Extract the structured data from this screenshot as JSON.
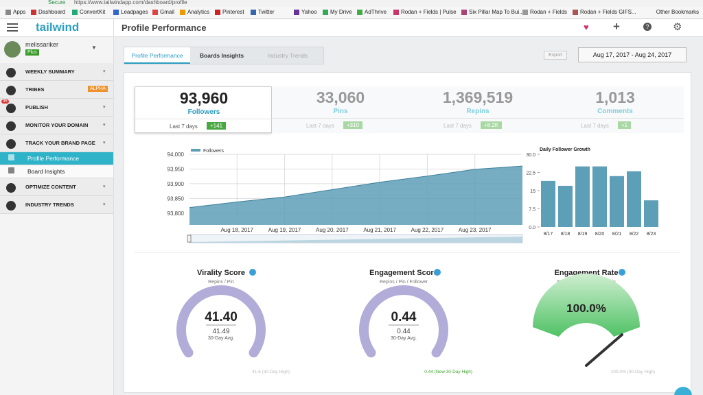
{
  "browser": {
    "security": "Secure",
    "url": "https://www.tailwindapp.com/dashboard/profile",
    "bookmarks": [
      "Apps",
      "Dashboard",
      "ConvertKit",
      "Leadpages",
      "Gmail",
      "Analytics",
      "Pinterest",
      "Twitter",
      "Yahoo",
      "My Drive",
      "AdThrive",
      "Rodan + Fields | Pulse",
      "Six Pillar Map To Bui...",
      "Rodan + Fields",
      "Rodan + Fields GIFS..."
    ],
    "other": "Other Bookmarks"
  },
  "app": {
    "logo": "tailwind",
    "page_title": "Profile Performance"
  },
  "user": {
    "name": "melissariker",
    "plan": "Plus"
  },
  "sidebar": [
    {
      "label": "WEEKLY SUMMARY"
    },
    {
      "label": "TRIBES",
      "tag": "ALPHA"
    },
    {
      "label": "PUBLISH",
      "badge": "35"
    },
    {
      "label": "MONITOR YOUR DOMAIN"
    },
    {
      "label": "TRACK YOUR BRAND PAGE"
    },
    {
      "label": "Profile Performance",
      "sub": true,
      "active": true
    },
    {
      "label": "Board Insights",
      "sub": true
    },
    {
      "label": "OPTIMIZE CONTENT"
    },
    {
      "label": "INDUSTRY TRENDS"
    }
  ],
  "tabs": [
    "Profile Performance",
    "Boards Insights",
    "Industry Trends"
  ],
  "export": "Export",
  "date_range": "Aug 17, 2017 - Aug 24, 2017",
  "stats": [
    {
      "value": "93,960",
      "label": "Followers",
      "period": "Last 7 days",
      "change": "+141"
    },
    {
      "value": "33,060",
      "label": "Pins",
      "period": "Last 7 days",
      "change": "+310"
    },
    {
      "value": "1,369,519",
      "label": "Repins",
      "period": "Last 7 days",
      "change": "+8.2K"
    },
    {
      "value": "1,013",
      "label": "Comments",
      "period": "Last 7 days",
      "change": "+1"
    }
  ],
  "chart_data": [
    {
      "type": "area",
      "legend": "Followers",
      "color": "#5e9fb8",
      "categories": [
        null,
        "Aug 18, 2017",
        "Aug 19, 2017",
        "Aug 20, 2017",
        "Aug 21, 2017",
        "Aug 22, 2017",
        "Aug 23, 2017",
        null
      ],
      "values": [
        93819,
        93838,
        93855,
        93880,
        93905,
        93926,
        93949,
        93960
      ],
      "ylim": [
        93760,
        94000
      ],
      "yticks": [
        {
          "value": 93800,
          "label": "93,800"
        },
        {
          "value": 93850,
          "label": "93,850"
        },
        {
          "value": 93900,
          "label": "93,900"
        },
        {
          "value": 93950,
          "label": "93,950"
        },
        {
          "value": 94000,
          "label": "94,000"
        }
      ],
      "grid": true
    },
    {
      "type": "bar",
      "title": "Daily Follower Growth",
      "color": "#5e9fb8",
      "categories": [
        "8/17",
        "8/18",
        "8/19",
        "8/20",
        "8/21",
        "8/22",
        "8/23"
      ],
      "values": [
        19,
        17,
        25,
        25,
        21,
        23,
        11
      ],
      "ylim": [
        0,
        30
      ],
      "yticks": [
        {
          "value": 0,
          "label": "0.0"
        },
        7.5,
        15,
        22.5,
        {
          "value": 30,
          "label": "30.0"
        }
      ]
    }
  ],
  "gauges": [
    {
      "title": "Virality Score",
      "subtitle": "Repins / Pin",
      "value": "41.40",
      "avg": "41.49",
      "avg_label": "30-Day Avg.",
      "high": "41.6 (30-Day High)"
    },
    {
      "title": "Engagement Score",
      "subtitle": "Repins / Pin / Follower",
      "value": "0.44",
      "avg": "0.44",
      "avg_label": "30-Day Avg.",
      "high": "0.44 (New 30-Day High)"
    },
    {
      "title": "Engagement Rate",
      "subtitle": "% of pins w/ at least 1 repin",
      "value": "100.0%",
      "high": "100.0% (30-Day High)"
    }
  ]
}
